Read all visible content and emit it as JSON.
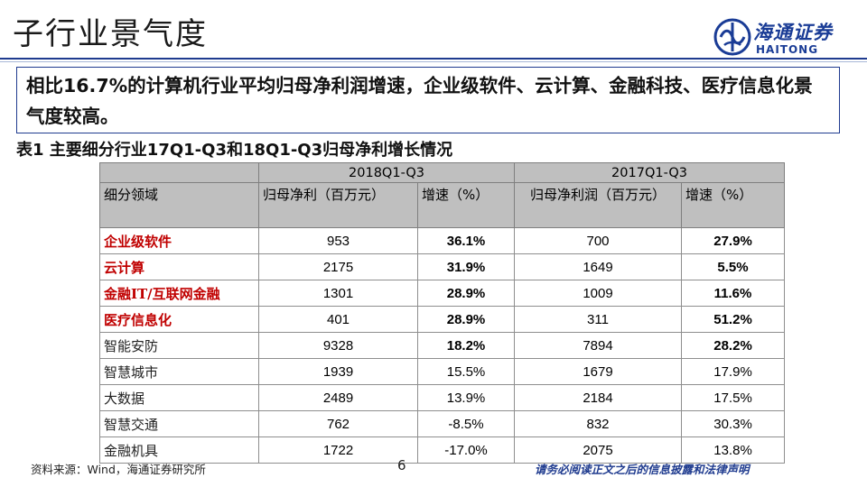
{
  "page": {
    "title": "子行业景气度",
    "summary": "相比16.7%的计算机行业平均归母净利润增速，企业级软件、云计算、金融科技、医疗信息化景气度较高。",
    "table_caption": "表1 主要细分行业17Q1-Q3和18Q1-Q3归母净利增长情况"
  },
  "logo": {
    "name_cn": "海通证券",
    "name_en": "HAITONG",
    "icon": "haitong-logo-icon",
    "color": "#1a3c96"
  },
  "table": {
    "group_headers": [
      "2018Q1-Q3",
      "2017Q1-Q3"
    ],
    "column_headers": [
      "细分领域",
      "归母净利（百万元）",
      "增速（%）",
      "归母净利润（百万元）",
      "增速（%）"
    ],
    "rows": [
      {
        "segment": "企业级软件",
        "profit_2018": "953",
        "growth_2018": "36.1%",
        "profit_2017": "700",
        "growth_2017": "27.9%"
      },
      {
        "segment": "云计算",
        "profit_2018": "2175",
        "growth_2018": "31.9%",
        "profit_2017": "1649",
        "growth_2017": "5.5%"
      },
      {
        "segment": "金融IT/互联网金融",
        "profit_2018": "1301",
        "growth_2018": "28.9%",
        "profit_2017": "1009",
        "growth_2017": "11.6%"
      },
      {
        "segment": "医疗信息化",
        "profit_2018": "401",
        "growth_2018": "28.9%",
        "profit_2017": "311",
        "growth_2017": "51.2%"
      },
      {
        "segment": "智能安防",
        "profit_2018": "9328",
        "growth_2018": "18.2%",
        "profit_2017": "7894",
        "growth_2017": "28.2%"
      },
      {
        "segment": "智慧城市",
        "profit_2018": "1939",
        "growth_2018": "15.5%",
        "profit_2017": "1679",
        "growth_2017": "17.9%"
      },
      {
        "segment": "大数据",
        "profit_2018": "2489",
        "growth_2018": "13.9%",
        "profit_2017": "2184",
        "growth_2017": "17.5%"
      },
      {
        "segment": "智慧交通",
        "profit_2018": "762",
        "growth_2018": "-8.5%",
        "profit_2017": "832",
        "growth_2017": "30.3%"
      },
      {
        "segment": "金融机具",
        "profit_2018": "1722",
        "growth_2018": "-17.0%",
        "profit_2017": "2075",
        "growth_2017": "13.8%"
      }
    ],
    "colors": {
      "header_bg": "#bfbfbf",
      "highlight_text": "#c00000"
    }
  },
  "footer": {
    "source": "资料来源：Wind，海通证券研究所",
    "page_number": "6",
    "disclaimer": "请务必阅读正文之后的信息披露和法律声明"
  }
}
